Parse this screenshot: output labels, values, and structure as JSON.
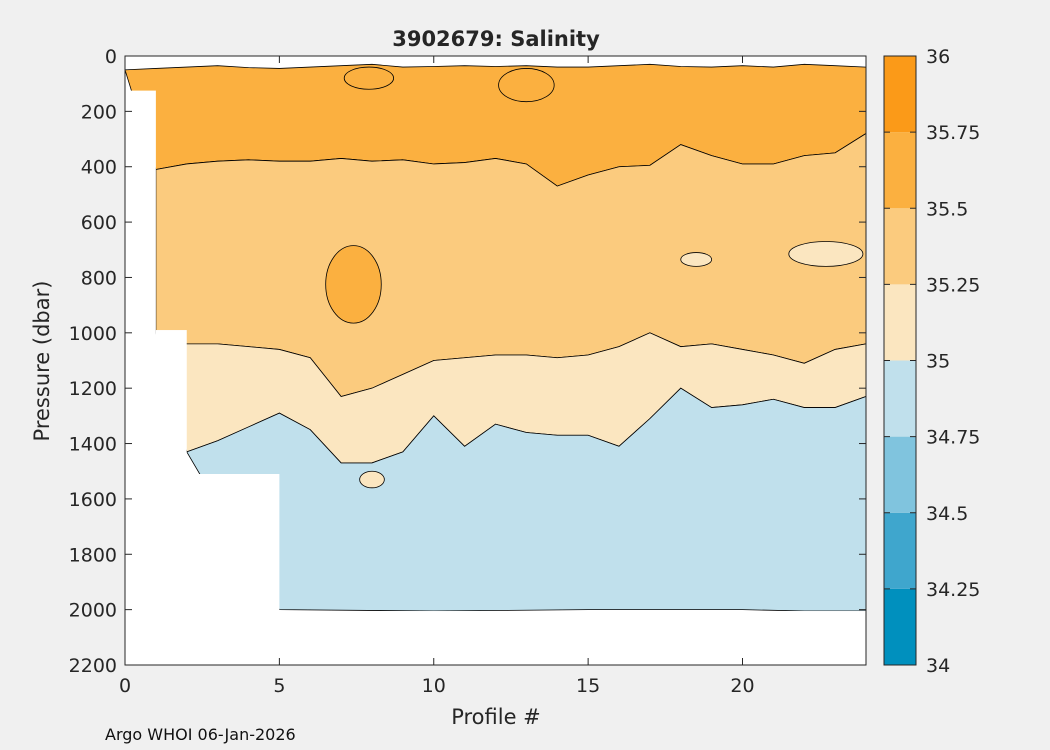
{
  "chart_data": {
    "type": "heatmap",
    "title": "3902679:  Salinity",
    "xlabel": "Profile #",
    "ylabel": "Pressure (dbar)",
    "xlim": [
      0,
      24
    ],
    "ylim": [
      0,
      2200
    ],
    "y_reversed": true,
    "x_ticks": [
      0,
      5,
      10,
      15,
      20
    ],
    "y_ticks": [
      0,
      200,
      400,
      600,
      800,
      1000,
      1200,
      1400,
      1600,
      1800,
      2000,
      2200
    ],
    "colorbar": {
      "levels": [
        34,
        34.25,
        34.5,
        34.75,
        35,
        35.25,
        35.5,
        35.75,
        36
      ],
      "tick_labels": [
        "34",
        "34.25",
        "34.5",
        "34.75",
        "35",
        "35.25",
        "35.5",
        "35.75",
        "36"
      ],
      "colors": [
        "#0090be",
        "#3fa6cd",
        "#80c4de",
        "#c0e0ec",
        "#fbe6c0",
        "#fbcb7e",
        "#fbb040",
        "#fb9a18"
      ]
    },
    "regions": [
      {
        "name": "band-35.5-35.75",
        "salinity_range": [
          35.5,
          35.75
        ],
        "color": "#fbb040",
        "upper": [
          [
            0,
            50
          ],
          [
            1,
            45
          ],
          [
            2,
            40
          ],
          [
            3,
            35
          ],
          [
            4,
            42
          ],
          [
            5,
            45
          ],
          [
            6,
            40
          ],
          [
            7,
            35
          ],
          [
            8,
            30
          ],
          [
            9,
            40
          ],
          [
            10,
            38
          ],
          [
            11,
            35
          ],
          [
            12,
            38
          ],
          [
            13,
            35
          ],
          [
            14,
            40
          ],
          [
            15,
            40
          ],
          [
            16,
            35
          ],
          [
            17,
            30
          ],
          [
            18,
            38
          ],
          [
            19,
            40
          ],
          [
            20,
            35
          ],
          [
            21,
            40
          ],
          [
            22,
            30
          ],
          [
            23,
            35
          ],
          [
            24,
            40
          ]
        ],
        "lower": [
          [
            1,
            410
          ],
          [
            2,
            390
          ],
          [
            3,
            380
          ],
          [
            4,
            375
          ],
          [
            5,
            380
          ],
          [
            6,
            380
          ],
          [
            7,
            370
          ],
          [
            8,
            380
          ],
          [
            9,
            375
          ],
          [
            10,
            390
          ],
          [
            11,
            385
          ],
          [
            12,
            370
          ],
          [
            13,
            390
          ],
          [
            14,
            470
          ],
          [
            15,
            430
          ],
          [
            16,
            400
          ],
          [
            17,
            395
          ],
          [
            18,
            320
          ],
          [
            19,
            360
          ],
          [
            20,
            390
          ],
          [
            21,
            390
          ],
          [
            22,
            360
          ],
          [
            23,
            350
          ],
          [
            24,
            280
          ]
        ]
      },
      {
        "name": "band-35.25-35.5",
        "salinity_range": [
          35.25,
          35.5
        ],
        "color": "#fbcb7e",
        "upper": [
          [
            1,
            410
          ],
          [
            2,
            390
          ],
          [
            3,
            380
          ],
          [
            4,
            375
          ],
          [
            5,
            380
          ],
          [
            6,
            380
          ],
          [
            7,
            370
          ],
          [
            8,
            380
          ],
          [
            9,
            375
          ],
          [
            10,
            390
          ],
          [
            11,
            385
          ],
          [
            12,
            370
          ],
          [
            13,
            390
          ],
          [
            14,
            470
          ],
          [
            15,
            430
          ],
          [
            16,
            400
          ],
          [
            17,
            395
          ],
          [
            18,
            320
          ],
          [
            19,
            360
          ],
          [
            20,
            390
          ],
          [
            21,
            390
          ],
          [
            22,
            360
          ],
          [
            23,
            350
          ],
          [
            24,
            280
          ]
        ],
        "lower": [
          [
            1,
            1000
          ],
          [
            2,
            1040
          ],
          [
            3,
            1040
          ],
          [
            4,
            1050
          ],
          [
            5,
            1060
          ],
          [
            6,
            1090
          ],
          [
            7,
            1230
          ],
          [
            8,
            1200
          ],
          [
            9,
            1150
          ],
          [
            10,
            1100
          ],
          [
            11,
            1090
          ],
          [
            12,
            1080
          ],
          [
            13,
            1080
          ],
          [
            14,
            1090
          ],
          [
            15,
            1080
          ],
          [
            16,
            1050
          ],
          [
            17,
            1000
          ],
          [
            18,
            1050
          ],
          [
            19,
            1040
          ],
          [
            20,
            1060
          ],
          [
            21,
            1080
          ],
          [
            22,
            1110
          ],
          [
            23,
            1060
          ],
          [
            24,
            1040
          ]
        ]
      },
      {
        "name": "band-35-35.25",
        "salinity_range": [
          35,
          35.25
        ],
        "color": "#fbe6c0",
        "upper": [
          [
            1,
            1000
          ],
          [
            2,
            1040
          ],
          [
            3,
            1040
          ],
          [
            4,
            1050
          ],
          [
            5,
            1060
          ],
          [
            6,
            1090
          ],
          [
            7,
            1230
          ],
          [
            8,
            1200
          ],
          [
            9,
            1150
          ],
          [
            10,
            1100
          ],
          [
            11,
            1090
          ],
          [
            12,
            1080
          ],
          [
            13,
            1080
          ],
          [
            14,
            1090
          ],
          [
            15,
            1080
          ],
          [
            16,
            1050
          ],
          [
            17,
            1000
          ],
          [
            18,
            1050
          ],
          [
            19,
            1040
          ],
          [
            20,
            1060
          ],
          [
            21,
            1080
          ],
          [
            22,
            1110
          ],
          [
            23,
            1060
          ],
          [
            24,
            1040
          ]
        ],
        "lower": [
          [
            2,
            1430
          ],
          [
            3,
            1390
          ],
          [
            4,
            1340
          ],
          [
            5,
            1290
          ],
          [
            6,
            1350
          ],
          [
            7,
            1470
          ],
          [
            8,
            1470
          ],
          [
            9,
            1430
          ],
          [
            10,
            1300
          ],
          [
            11,
            1410
          ],
          [
            12,
            1330
          ],
          [
            13,
            1360
          ],
          [
            14,
            1370
          ],
          [
            15,
            1370
          ],
          [
            16,
            1410
          ],
          [
            17,
            1310
          ],
          [
            18,
            1200
          ],
          [
            19,
            1270
          ],
          [
            20,
            1260
          ],
          [
            21,
            1240
          ],
          [
            22,
            1270
          ],
          [
            23,
            1270
          ],
          [
            24,
            1230
          ]
        ]
      },
      {
        "name": "band-34.75-35",
        "salinity_range": [
          34.75,
          35
        ],
        "color": "#c0e0ec",
        "upper": [
          [
            2,
            1430
          ],
          [
            3,
            1390
          ],
          [
            4,
            1340
          ],
          [
            5,
            1290
          ],
          [
            6,
            1350
          ],
          [
            7,
            1470
          ],
          [
            8,
            1470
          ],
          [
            9,
            1430
          ],
          [
            10,
            1300
          ],
          [
            11,
            1410
          ],
          [
            12,
            1330
          ],
          [
            13,
            1360
          ],
          [
            14,
            1370
          ],
          [
            15,
            1370
          ],
          [
            16,
            1410
          ],
          [
            17,
            1310
          ],
          [
            18,
            1200
          ],
          [
            19,
            1270
          ],
          [
            20,
            1260
          ],
          [
            21,
            1240
          ],
          [
            22,
            1270
          ],
          [
            23,
            1270
          ],
          [
            24,
            1230
          ]
        ],
        "lower": [
          [
            5,
            2000
          ],
          [
            10,
            2005
          ],
          [
            15,
            2000
          ],
          [
            20,
            2000
          ],
          [
            22,
            2005
          ],
          [
            24,
            2005
          ]
        ]
      }
    ],
    "blobs": [
      {
        "name": "blob-high-profile-8",
        "x": 7.9,
        "y": 80,
        "rx": 0.8,
        "ry": 40,
        "color": "#fbb040"
      },
      {
        "name": "blob-high-profile-13",
        "x": 13,
        "y": 105,
        "rx": 0.9,
        "ry": 60,
        "color": "#fbb040"
      },
      {
        "name": "blob-high-profile-8-lower",
        "x": 7.4,
        "y": 825,
        "rx": 0.9,
        "ry": 140,
        "color": "#fbb040"
      },
      {
        "name": "blob-fresh-profile-18",
        "x": 18.5,
        "y": 735,
        "rx": 0.5,
        "ry": 25,
        "color": "#fbe6c0"
      },
      {
        "name": "blob-fresh-profile-22",
        "x": 22.7,
        "y": 715,
        "rx": 1.2,
        "ry": 45,
        "color": "#fbe6c0"
      },
      {
        "name": "blob-fresh-profile-8-deep",
        "x": 8.0,
        "y": 1530,
        "rx": 0.4,
        "ry": 30,
        "color": "#fbe6c0"
      }
    ],
    "no_data": [
      {
        "x": [
          0,
          1
        ],
        "y": [
          125,
          2200
        ]
      },
      {
        "x": [
          1,
          2
        ],
        "y": [
          990,
          2200
        ]
      },
      {
        "x": [
          2,
          5
        ],
        "y": [
          1510,
          2200
        ]
      },
      {
        "x": [
          5,
          24
        ],
        "y": [
          2005,
          2200
        ]
      }
    ]
  },
  "footer": {
    "text": "Argo WHOI 06-Jan-2026"
  }
}
